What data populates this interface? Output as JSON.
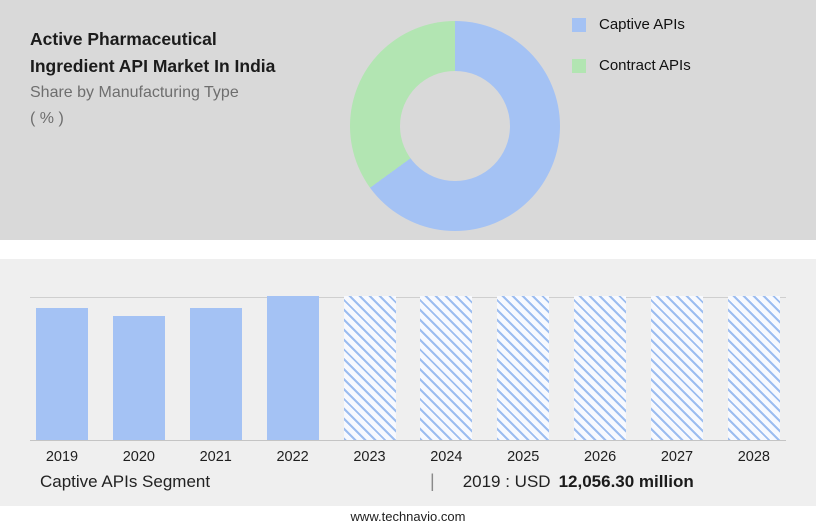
{
  "header": {
    "title_line1": "Active Pharmaceutical",
    "title_line2": "Ingredient API Market In India",
    "subtitle_line1": "Share by Manufacturing Type",
    "subtitle_line2": "( % )"
  },
  "legend": {
    "items": [
      {
        "label": "Captive APIs",
        "color": "#a4c2f4"
      },
      {
        "label": "Contract APIs",
        "color": "#b2e5b2"
      }
    ]
  },
  "caption": {
    "segment": "Captive APIs Segment",
    "separator": "|",
    "prefix": "2019 : USD",
    "value": "12,056.30 million"
  },
  "footer": {
    "website": "www.technavio.com"
  },
  "colors": {
    "captive_blue": "#a4c2f4",
    "contract_green": "#b2e5b2",
    "top_background": "#d9d9d9",
    "bottom_background": "#efefef"
  },
  "chart_data": [
    {
      "type": "pie",
      "title": "Active Pharmaceutical Ingredient API Market In India - Share by Manufacturing Type ( % )",
      "labels": [
        "Captive APIs",
        "Contract APIs"
      ],
      "values": [
        65,
        35
      ],
      "colors": [
        "#a4c2f4",
        "#b2e5b2"
      ],
      "donut": true,
      "legend_position": "right",
      "note": "No numeric labels shown; segment shares estimated from arc angles (blue starts at 12 o'clock going clockwise)"
    },
    {
      "type": "bar",
      "title": "Market size by year (values unlabeled)",
      "categories": [
        "2019",
        "2020",
        "2021",
        "2022",
        "2023",
        "2024",
        "2025",
        "2026",
        "2027",
        "2028"
      ],
      "values_relative": [
        0.92,
        0.86,
        0.92,
        1.0,
        1.0,
        1.0,
        1.0,
        1.0,
        1.0,
        1.0
      ],
      "bar_styles": [
        "solid",
        "solid",
        "solid",
        "solid",
        "hatched",
        "hatched",
        "hatched",
        "hatched",
        "hatched",
        "hatched"
      ],
      "hatched_meaning": "forecast years 2023-2028",
      "annotation": "2019 : USD 12,056.30 million",
      "ylim": [
        0,
        1
      ],
      "grid": "single top gridline and bottom axis line only"
    }
  ]
}
